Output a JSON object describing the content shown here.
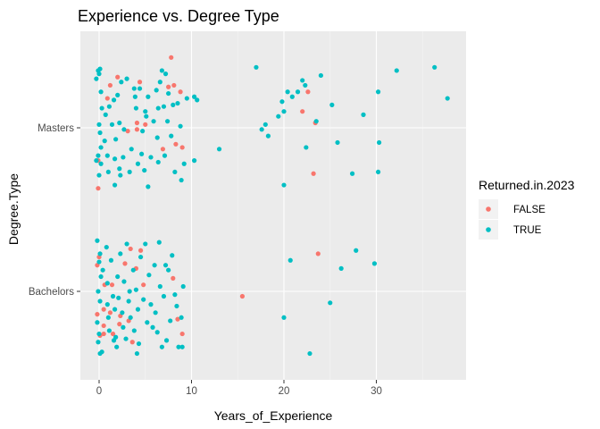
{
  "chart_data": {
    "type": "scatter",
    "title": "Experience vs. Degree Type",
    "xlabel": "Years_of_Experience",
    "ylabel": "Degree.Type",
    "xlim": [
      -1.2,
      39.5
    ],
    "xticks": [
      0,
      10,
      20,
      30
    ],
    "x_tick_labels": [
      "0",
      "10",
      "20",
      "30"
    ],
    "categories": [
      "Bachelors",
      "Masters"
    ],
    "jitter": "vertical",
    "grid": true,
    "panel_background": "#ebebeb",
    "legend": {
      "title": "Returned.in.2023",
      "position": "right",
      "entries": [
        {
          "label": "FALSE",
          "color": "#f8766d"
        },
        {
          "label": "TRUE",
          "color": "#00bfc4"
        }
      ]
    },
    "series": [
      {
        "name": "FALSE",
        "color": "#f8766d",
        "points": [
          {
            "x": -0.2,
            "y": 0.86
          },
          {
            "x": -0.2,
            "y": 1.16
          },
          {
            "x": -0.1,
            "y": 1.63
          },
          {
            "x": 0.0,
            "y": 1.21
          },
          {
            "x": -0.1,
            "y": 1.8
          },
          {
            "x": 0.9,
            "y": 2.18
          },
          {
            "x": 1.2,
            "y": 2.26
          },
          {
            "x": 2.0,
            "y": 2.31
          },
          {
            "x": 3.1,
            "y": 1.98
          },
          {
            "x": 4.1,
            "y": 2.03
          },
          {
            "x": 4.4,
            "y": 2.28
          },
          {
            "x": 5.0,
            "y": 2.02
          },
          {
            "x": 6.9,
            "y": 1.87
          },
          {
            "x": 7.5,
            "y": 2.25
          },
          {
            "x": 8.1,
            "y": 2.26
          },
          {
            "x": 8.3,
            "y": 1.9
          },
          {
            "x": 8.8,
            "y": 2.22
          },
          {
            "x": 9.0,
            "y": 1.88
          },
          {
            "x": 7.8,
            "y": 2.43
          },
          {
            "x": 22.0,
            "y": 2.1
          },
          {
            "x": 22.6,
            "y": 2.22
          },
          {
            "x": 23.4,
            "y": 2.03
          },
          {
            "x": 23.2,
            "y": 1.72
          },
          {
            "x": 0.1,
            "y": 0.73
          },
          {
            "x": 0.5,
            "y": 0.74
          },
          {
            "x": 0.5,
            "y": 0.79
          },
          {
            "x": 0.5,
            "y": 0.89
          },
          {
            "x": 0.6,
            "y": 1.04
          },
          {
            "x": 1.5,
            "y": 0.74
          },
          {
            "x": 1.2,
            "y": 0.87
          },
          {
            "x": 1.4,
            "y": 1.04
          },
          {
            "x": 2.2,
            "y": 0.8
          },
          {
            "x": 2.3,
            "y": 0.85
          },
          {
            "x": 3.2,
            "y": 0.82
          },
          {
            "x": 3.6,
            "y": 0.69
          },
          {
            "x": 3.4,
            "y": 1.26
          },
          {
            "x": 4.0,
            "y": 1.14
          },
          {
            "x": 4.5,
            "y": 1.25
          },
          {
            "x": 4.8,
            "y": 1.04
          },
          {
            "x": 4.1,
            "y": 1.99
          },
          {
            "x": 2.8,
            "y": 1.17
          },
          {
            "x": 8.0,
            "y": 1.08
          },
          {
            "x": 8.5,
            "y": 0.83
          },
          {
            "x": 9.0,
            "y": 0.74
          },
          {
            "x": 15.5,
            "y": 0.97
          },
          {
            "x": 23.7,
            "y": 1.23
          }
        ]
      },
      {
        "name": "TRUE",
        "color": "#00bfc4",
        "points": [
          {
            "x": -0.1,
            "y": 2.35
          },
          {
            "x": 0.1,
            "y": 2.36
          },
          {
            "x": 0.0,
            "y": 2.33
          },
          {
            "x": 0.2,
            "y": 2.22
          },
          {
            "x": -0.3,
            "y": 2.3
          },
          {
            "x": 0.3,
            "y": 2.12
          },
          {
            "x": 0.0,
            "y": 2.02
          },
          {
            "x": -0.3,
            "y": 1.8
          },
          {
            "x": -0.1,
            "y": 1.83
          },
          {
            "x": 0.2,
            "y": 1.88
          },
          {
            "x": 0.1,
            "y": 1.97
          },
          {
            "x": 0.2,
            "y": 1.78
          },
          {
            "x": 0.0,
            "y": 1.71
          },
          {
            "x": 0.6,
            "y": 1.92
          },
          {
            "x": 0.9,
            "y": 1.83
          },
          {
            "x": 1.4,
            "y": 2.02
          },
          {
            "x": 1.6,
            "y": 2.17
          },
          {
            "x": 1.7,
            "y": 1.81
          },
          {
            "x": 1.7,
            "y": 1.65
          },
          {
            "x": 1.8,
            "y": 1.93
          },
          {
            "x": 2.0,
            "y": 2.2
          },
          {
            "x": 2.2,
            "y": 2.03
          },
          {
            "x": 2.2,
            "y": 1.75
          },
          {
            "x": 2.4,
            "y": 2.28
          },
          {
            "x": 2.3,
            "y": 1.71
          },
          {
            "x": 2.6,
            "y": 1.82
          },
          {
            "x": 3.3,
            "y": 1.73
          },
          {
            "x": 3.5,
            "y": 1.87
          },
          {
            "x": 3.8,
            "y": 2.24
          },
          {
            "x": 4.0,
            "y": 2.12
          },
          {
            "x": 4.2,
            "y": 1.78
          },
          {
            "x": 4.4,
            "y": 2.24
          },
          {
            "x": 4.7,
            "y": 1.98
          },
          {
            "x": 4.6,
            "y": 1.84
          },
          {
            "x": 5.1,
            "y": 2.07
          },
          {
            "x": 5.3,
            "y": 1.64
          },
          {
            "x": 5.3,
            "y": 2.19
          },
          {
            "x": 5.6,
            "y": 1.82
          },
          {
            "x": 5.9,
            "y": 2.04
          },
          {
            "x": 6.2,
            "y": 2.23
          },
          {
            "x": 6.4,
            "y": 1.79
          },
          {
            "x": 6.4,
            "y": 2.12
          },
          {
            "x": 6.6,
            "y": 2.28
          },
          {
            "x": 6.8,
            "y": 2.35
          },
          {
            "x": 7.2,
            "y": 2.33
          },
          {
            "x": 7.0,
            "y": 2.13
          },
          {
            "x": 7.4,
            "y": 2.04
          },
          {
            "x": 7.5,
            "y": 2.21
          },
          {
            "x": 7.8,
            "y": 1.95
          },
          {
            "x": 8.0,
            "y": 2.14
          },
          {
            "x": 8.2,
            "y": 1.73
          },
          {
            "x": 8.5,
            "y": 2.15
          },
          {
            "x": 8.8,
            "y": 2.01
          },
          {
            "x": 9.2,
            "y": 1.78
          },
          {
            "x": 9.5,
            "y": 2.18
          },
          {
            "x": 10.3,
            "y": 2.19
          },
          {
            "x": 10.6,
            "y": 2.17
          },
          {
            "x": 10.3,
            "y": 1.8
          },
          {
            "x": 13.0,
            "y": 1.87
          },
          {
            "x": 17.0,
            "y": 2.37
          },
          {
            "x": 17.6,
            "y": 1.99
          },
          {
            "x": 18.0,
            "y": 2.02
          },
          {
            "x": 18.3,
            "y": 1.95
          },
          {
            "x": 19.4,
            "y": 2.07
          },
          {
            "x": 19.8,
            "y": 2.16
          },
          {
            "x": 20.0,
            "y": 2.1
          },
          {
            "x": 20.4,
            "y": 2.22
          },
          {
            "x": 20.9,
            "y": 2.19
          },
          {
            "x": 21.5,
            "y": 2.22
          },
          {
            "x": 22.0,
            "y": 2.29
          },
          {
            "x": 22.3,
            "y": 2.26
          },
          {
            "x": 23.5,
            "y": 2.04
          },
          {
            "x": 24.0,
            "y": 2.32
          },
          {
            "x": 25.2,
            "y": 2.14
          },
          {
            "x": 25.8,
            "y": 1.91
          },
          {
            "x": 28.6,
            "y": 2.08
          },
          {
            "x": 30.2,
            "y": 2.22
          },
          {
            "x": 30.3,
            "y": 1.91
          },
          {
            "x": 30.2,
            "y": 1.73
          },
          {
            "x": 32.2,
            "y": 2.35
          },
          {
            "x": 36.3,
            "y": 2.37
          },
          {
            "x": 37.7,
            "y": 2.18
          },
          {
            "x": 27.4,
            "y": 1.72
          },
          {
            "x": 22.4,
            "y": 1.88
          },
          {
            "x": 20.0,
            "y": 1.65
          },
          {
            "x": 1.1,
            "y": 2.13
          },
          {
            "x": 2.7,
            "y": 1.99
          },
          {
            "x": 3.0,
            "y": 2.3
          },
          {
            "x": 4.9,
            "y": 1.74
          },
          {
            "x": 6.3,
            "y": 1.94
          },
          {
            "x": 8.9,
            "y": 1.68
          },
          {
            "x": 0.7,
            "y": 2.08
          },
          {
            "x": 5.0,
            "y": 2.1
          },
          {
            "x": 1.0,
            "y": 1.73
          },
          {
            "x": 3.9,
            "y": 2.19
          },
          {
            "x": 7.1,
            "y": 1.83
          },
          {
            "x": -0.2,
            "y": 1.31
          },
          {
            "x": 0.0,
            "y": 1.18
          },
          {
            "x": 0.2,
            "y": 1.09
          },
          {
            "x": -0.1,
            "y": 1.0
          },
          {
            "x": 0.1,
            "y": 0.94
          },
          {
            "x": -0.2,
            "y": 0.81
          },
          {
            "x": 0.0,
            "y": 0.74
          },
          {
            "x": -0.1,
            "y": 0.69
          },
          {
            "x": 0.3,
            "y": 0.63
          },
          {
            "x": 0.1,
            "y": 1.23
          },
          {
            "x": 0.4,
            "y": 1.13
          },
          {
            "x": 0.8,
            "y": 1.27
          },
          {
            "x": 0.9,
            "y": 1.05
          },
          {
            "x": 0.9,
            "y": 0.92
          },
          {
            "x": 1.0,
            "y": 0.84
          },
          {
            "x": 1.1,
            "y": 0.76
          },
          {
            "x": 1.3,
            "y": 1.19
          },
          {
            "x": 1.5,
            "y": 0.97
          },
          {
            "x": 1.7,
            "y": 0.89
          },
          {
            "x": 1.8,
            "y": 0.72
          },
          {
            "x": 1.9,
            "y": 0.66
          },
          {
            "x": 2.0,
            "y": 1.09
          },
          {
            "x": 2.1,
            "y": 0.96
          },
          {
            "x": 2.3,
            "y": 1.23
          },
          {
            "x": 2.5,
            "y": 0.87
          },
          {
            "x": 2.6,
            "y": 0.78
          },
          {
            "x": 2.7,
            "y": 1.06
          },
          {
            "x": 3.0,
            "y": 1.29
          },
          {
            "x": 3.2,
            "y": 0.94
          },
          {
            "x": 3.4,
            "y": 0.84
          },
          {
            "x": 3.7,
            "y": 1.13
          },
          {
            "x": 3.8,
            "y": 0.76
          },
          {
            "x": 4.0,
            "y": 1.01
          },
          {
            "x": 4.2,
            "y": 0.89
          },
          {
            "x": 4.3,
            "y": 0.68
          },
          {
            "x": 4.5,
            "y": 1.21
          },
          {
            "x": 4.8,
            "y": 0.95
          },
          {
            "x": 5.0,
            "y": 1.29
          },
          {
            "x": 5.2,
            "y": 0.81
          },
          {
            "x": 5.4,
            "y": 1.1
          },
          {
            "x": 5.6,
            "y": 0.92
          },
          {
            "x": 6.0,
            "y": 1.16
          },
          {
            "x": 6.1,
            "y": 0.87
          },
          {
            "x": 6.3,
            "y": 0.75
          },
          {
            "x": 6.6,
            "y": 1.03
          },
          {
            "x": 6.8,
            "y": 0.66
          },
          {
            "x": 7.0,
            "y": 0.97
          },
          {
            "x": 7.3,
            "y": 0.7
          },
          {
            "x": 7.5,
            "y": 1.13
          },
          {
            "x": 7.7,
            "y": 0.82
          },
          {
            "x": 7.9,
            "y": 1.22
          },
          {
            "x": 8.2,
            "y": 0.98
          },
          {
            "x": 8.4,
            "y": 0.91
          },
          {
            "x": 8.6,
            "y": 0.66
          },
          {
            "x": 8.9,
            "y": 0.84
          },
          {
            "x": 9.1,
            "y": 1.03
          },
          {
            "x": 9.0,
            "y": 0.66
          },
          {
            "x": 4.1,
            "y": 0.62
          },
          {
            "x": 0.1,
            "y": 0.62
          },
          {
            "x": 1.6,
            "y": 0.7
          },
          {
            "x": 20.0,
            "y": 0.84
          },
          {
            "x": 20.7,
            "y": 1.19
          },
          {
            "x": 22.8,
            "y": 0.62
          },
          {
            "x": 25.0,
            "y": 0.93
          },
          {
            "x": 26.2,
            "y": 1.14
          },
          {
            "x": 27.8,
            "y": 1.25
          },
          {
            "x": 29.8,
            "y": 1.17
          },
          {
            "x": 6.5,
            "y": 1.3
          },
          {
            "x": 3.3,
            "y": 1.0
          },
          {
            "x": 5.8,
            "y": 0.78
          },
          {
            "x": 2.9,
            "y": 0.71
          },
          {
            "x": 7.2,
            "y": 1.16
          }
        ]
      }
    ]
  }
}
